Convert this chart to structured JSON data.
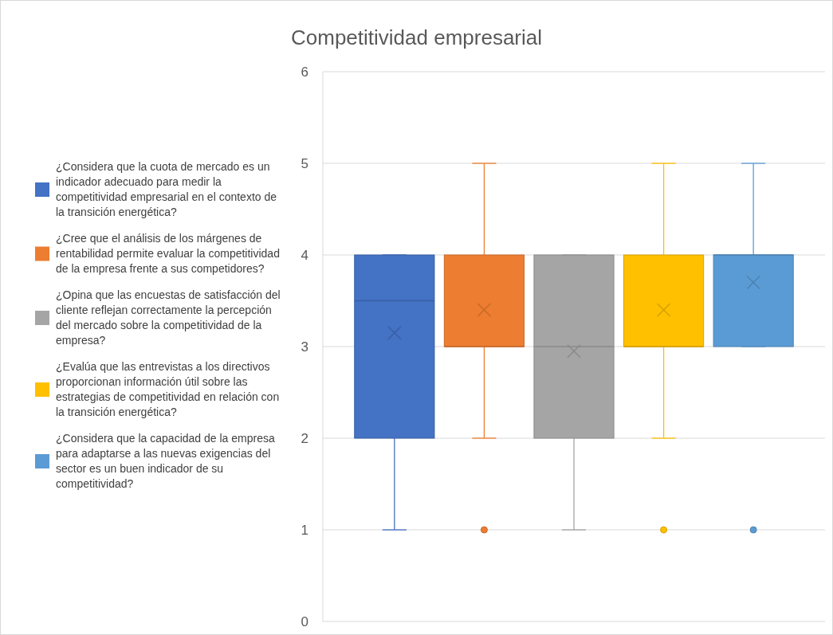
{
  "chart_data": {
    "type": "box",
    "title": "Competitividad empresarial",
    "categories": [
      null
    ],
    "ylim": [
      0,
      6
    ],
    "yticks": [
      0,
      1,
      2,
      3,
      4,
      5,
      6
    ],
    "grid": "y",
    "legend": "left",
    "series": [
      {
        "name": "¿Considera que la cuota de mercado es un indicador adecuado para medir la competitividad empresarial en el contexto de la transición energética?",
        "color": "#4472c4",
        "boxes": [
          {
            "low": 1,
            "q1": 2,
            "median": 3.5,
            "q3": 4,
            "high": 4,
            "mean": 3.15
          }
        ]
      },
      {
        "name": "¿Cree que el análisis de los márgenes de rentabilidad permite evaluar la competitividad de la empresa frente a sus competidores?",
        "color": "#ed7d31",
        "boxes": [
          {
            "low": 2,
            "q1": 3,
            "median": 3,
            "q3": 4,
            "high": 5,
            "mean": 3.4,
            "outliers": [
              1
            ]
          }
        ]
      },
      {
        "name": "¿Opina que las encuestas de satisfacción del cliente reflejan correctamente la percepción del mercado sobre la competitividad de la empresa?",
        "color": "#a5a5a5",
        "boxes": [
          {
            "low": 1,
            "q1": 2,
            "median": 3,
            "q3": 4,
            "high": 4,
            "mean": 2.95
          }
        ]
      },
      {
        "name": "¿Evalúa que las entrevistas a los directivos proporcionan información útil sobre las estrategias de competitividad en relación con la transición energética?",
        "color": "#ffc000",
        "boxes": [
          {
            "low": 2,
            "q1": 3,
            "median": 3,
            "q3": 4,
            "high": 5,
            "mean": 3.4,
            "outliers": [
              1
            ]
          }
        ]
      },
      {
        "name": "¿Considera que la capacidad de la empresa para adaptarse a las nuevas exigencias del sector es un buen indicador de su competitividad?",
        "color": "#5b9bd5",
        "boxes": [
          {
            "low": 3,
            "q1": 3,
            "median": 4,
            "q3": 4,
            "high": 5,
            "mean": 3.7,
            "outliers": [
              1
            ]
          }
        ]
      }
    ]
  }
}
